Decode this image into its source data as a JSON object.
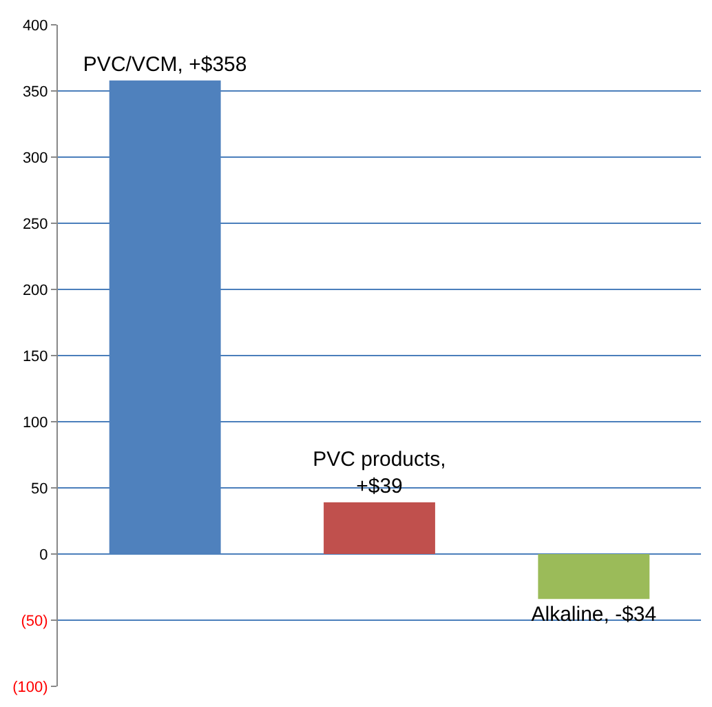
{
  "chart_data": {
    "type": "bar",
    "categories": [
      null,
      null,
      null
    ],
    "values": [
      358,
      39,
      -34
    ],
    "colors": [
      "#4f81bd",
      "#c0504d",
      "#9bbb59"
    ],
    "value_labels": [
      "PVC/VCM, +$358",
      "PVC products, +$39",
      "Alkaline, -$34"
    ],
    "ylim": [
      -100,
      400
    ],
    "yticks": [
      {
        "value": -100,
        "label": "(100)"
      },
      {
        "value": -50,
        "label": "(50)"
      },
      0,
      50,
      100,
      150,
      200,
      250,
      300,
      350,
      400
    ],
    "grid": "y",
    "legend": false
  }
}
